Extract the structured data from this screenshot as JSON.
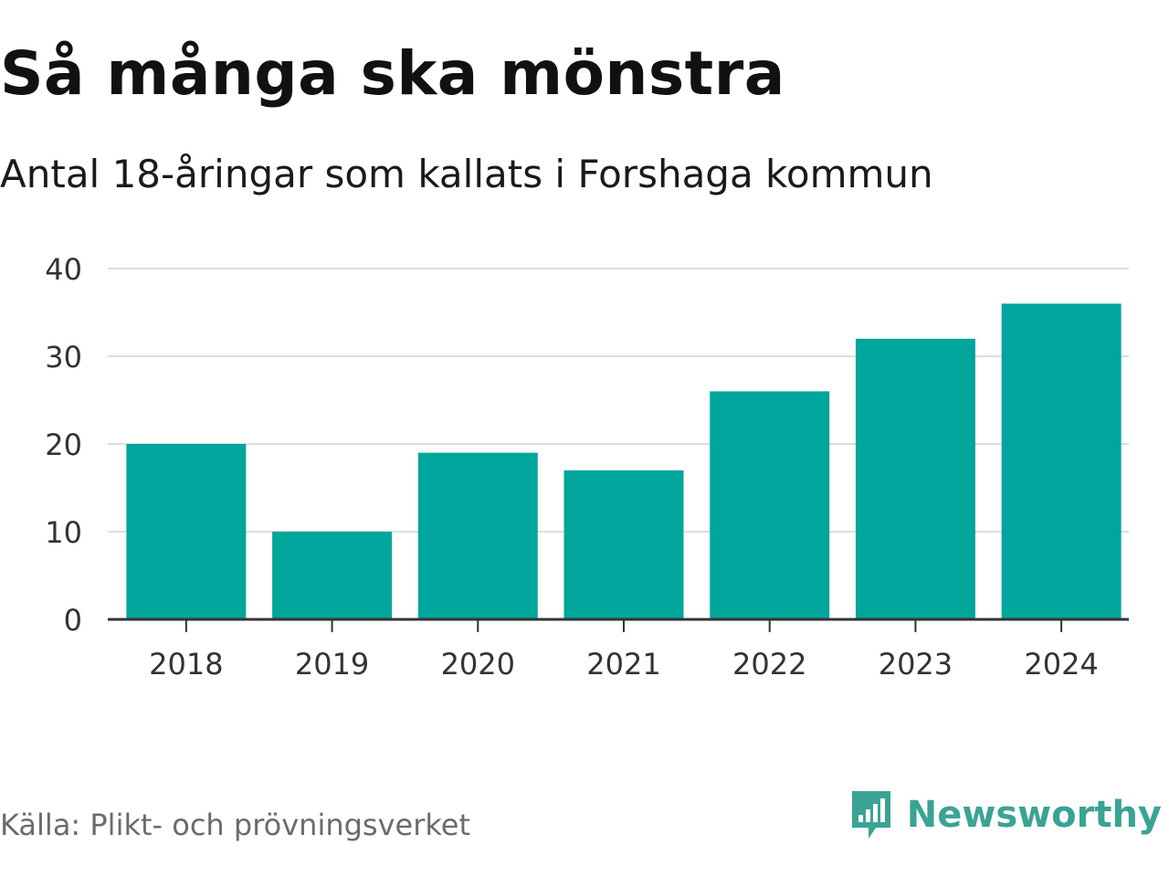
{
  "header": {
    "title": "Så många ska mönstra",
    "subtitle": "Antal 18-åringar som kallats i Forshaga kommun"
  },
  "footer": {
    "source": "Källa: Plikt- och prövningsverket",
    "brand": "Newsworthy",
    "brand_icon": "newsworthy-logo-icon"
  },
  "colors": {
    "bar": "#00a59b",
    "grid": "#dddddd",
    "axis": "#333333",
    "tick_text": "#333333",
    "brand": "#3aa394"
  },
  "chart_data": {
    "type": "bar",
    "title": "Så många ska mönstra",
    "subtitle": "Antal 18-åringar som kallats i Forshaga kommun",
    "categories": [
      "2018",
      "2019",
      "2020",
      "2021",
      "2022",
      "2023",
      "2024"
    ],
    "values": [
      20,
      10,
      19,
      17,
      26,
      32,
      36
    ],
    "xlabel": "",
    "ylabel": "",
    "ylim": [
      0,
      40
    ],
    "yticks": [
      0,
      10,
      20,
      30,
      40
    ],
    "grid": true
  }
}
